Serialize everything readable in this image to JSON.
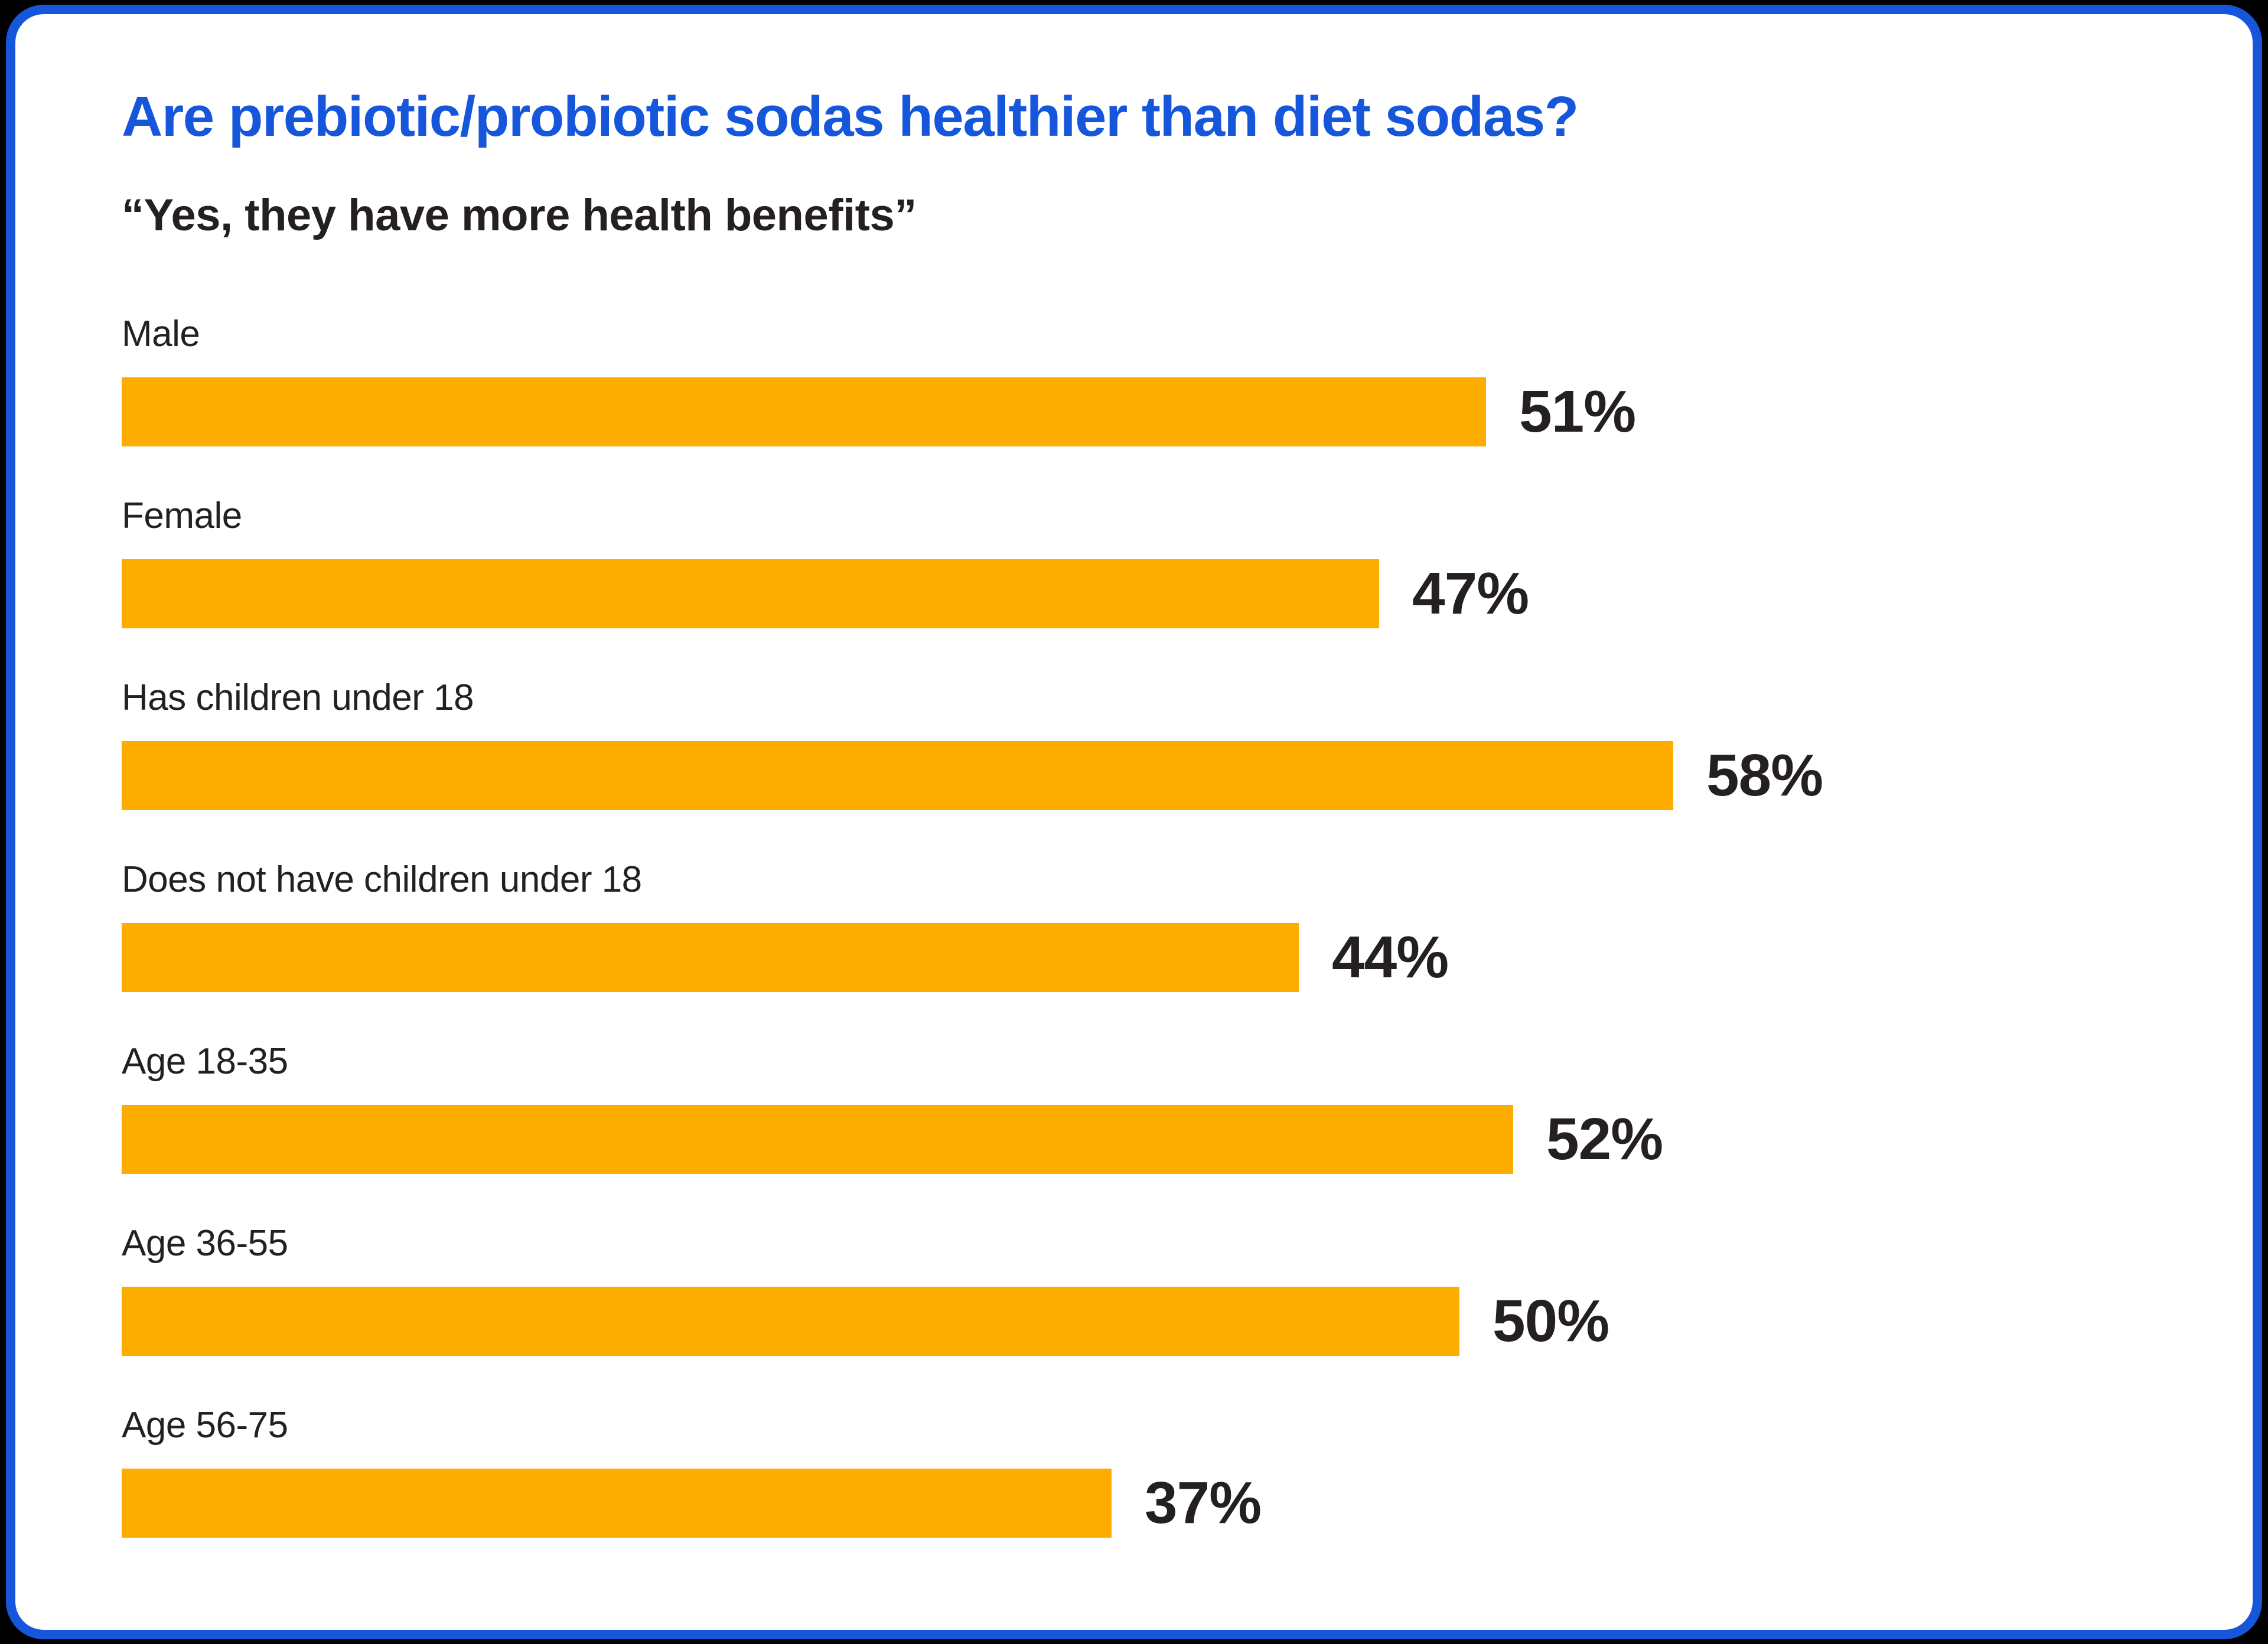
{
  "chart_data": {
    "type": "bar",
    "orientation": "horizontal",
    "title": "Are prebiotic/probiotic sodas healthier than diet sodas?",
    "subtitle": "“Yes, they have more health benefits”",
    "categories": [
      "Male",
      "Female",
      "Has children under 18",
      "Does not have children under 18",
      "Age 18-35",
      "Age 36-55",
      "Age 56-75"
    ],
    "values": [
      51,
      47,
      58,
      44,
      52,
      50,
      37
    ],
    "unit": "%",
    "value_labels": [
      "51%",
      "47%",
      "58%",
      "44%",
      "52%",
      "50%",
      "37%"
    ],
    "grid": false,
    "legend": false,
    "value_label_position": "right-of-bar"
  },
  "colors": {
    "accent_blue": "#1656DB",
    "bar_orange": "#FCAD00",
    "text_dark": "#242021",
    "card_background": "#FFFFFF",
    "page_background": "#000000"
  }
}
